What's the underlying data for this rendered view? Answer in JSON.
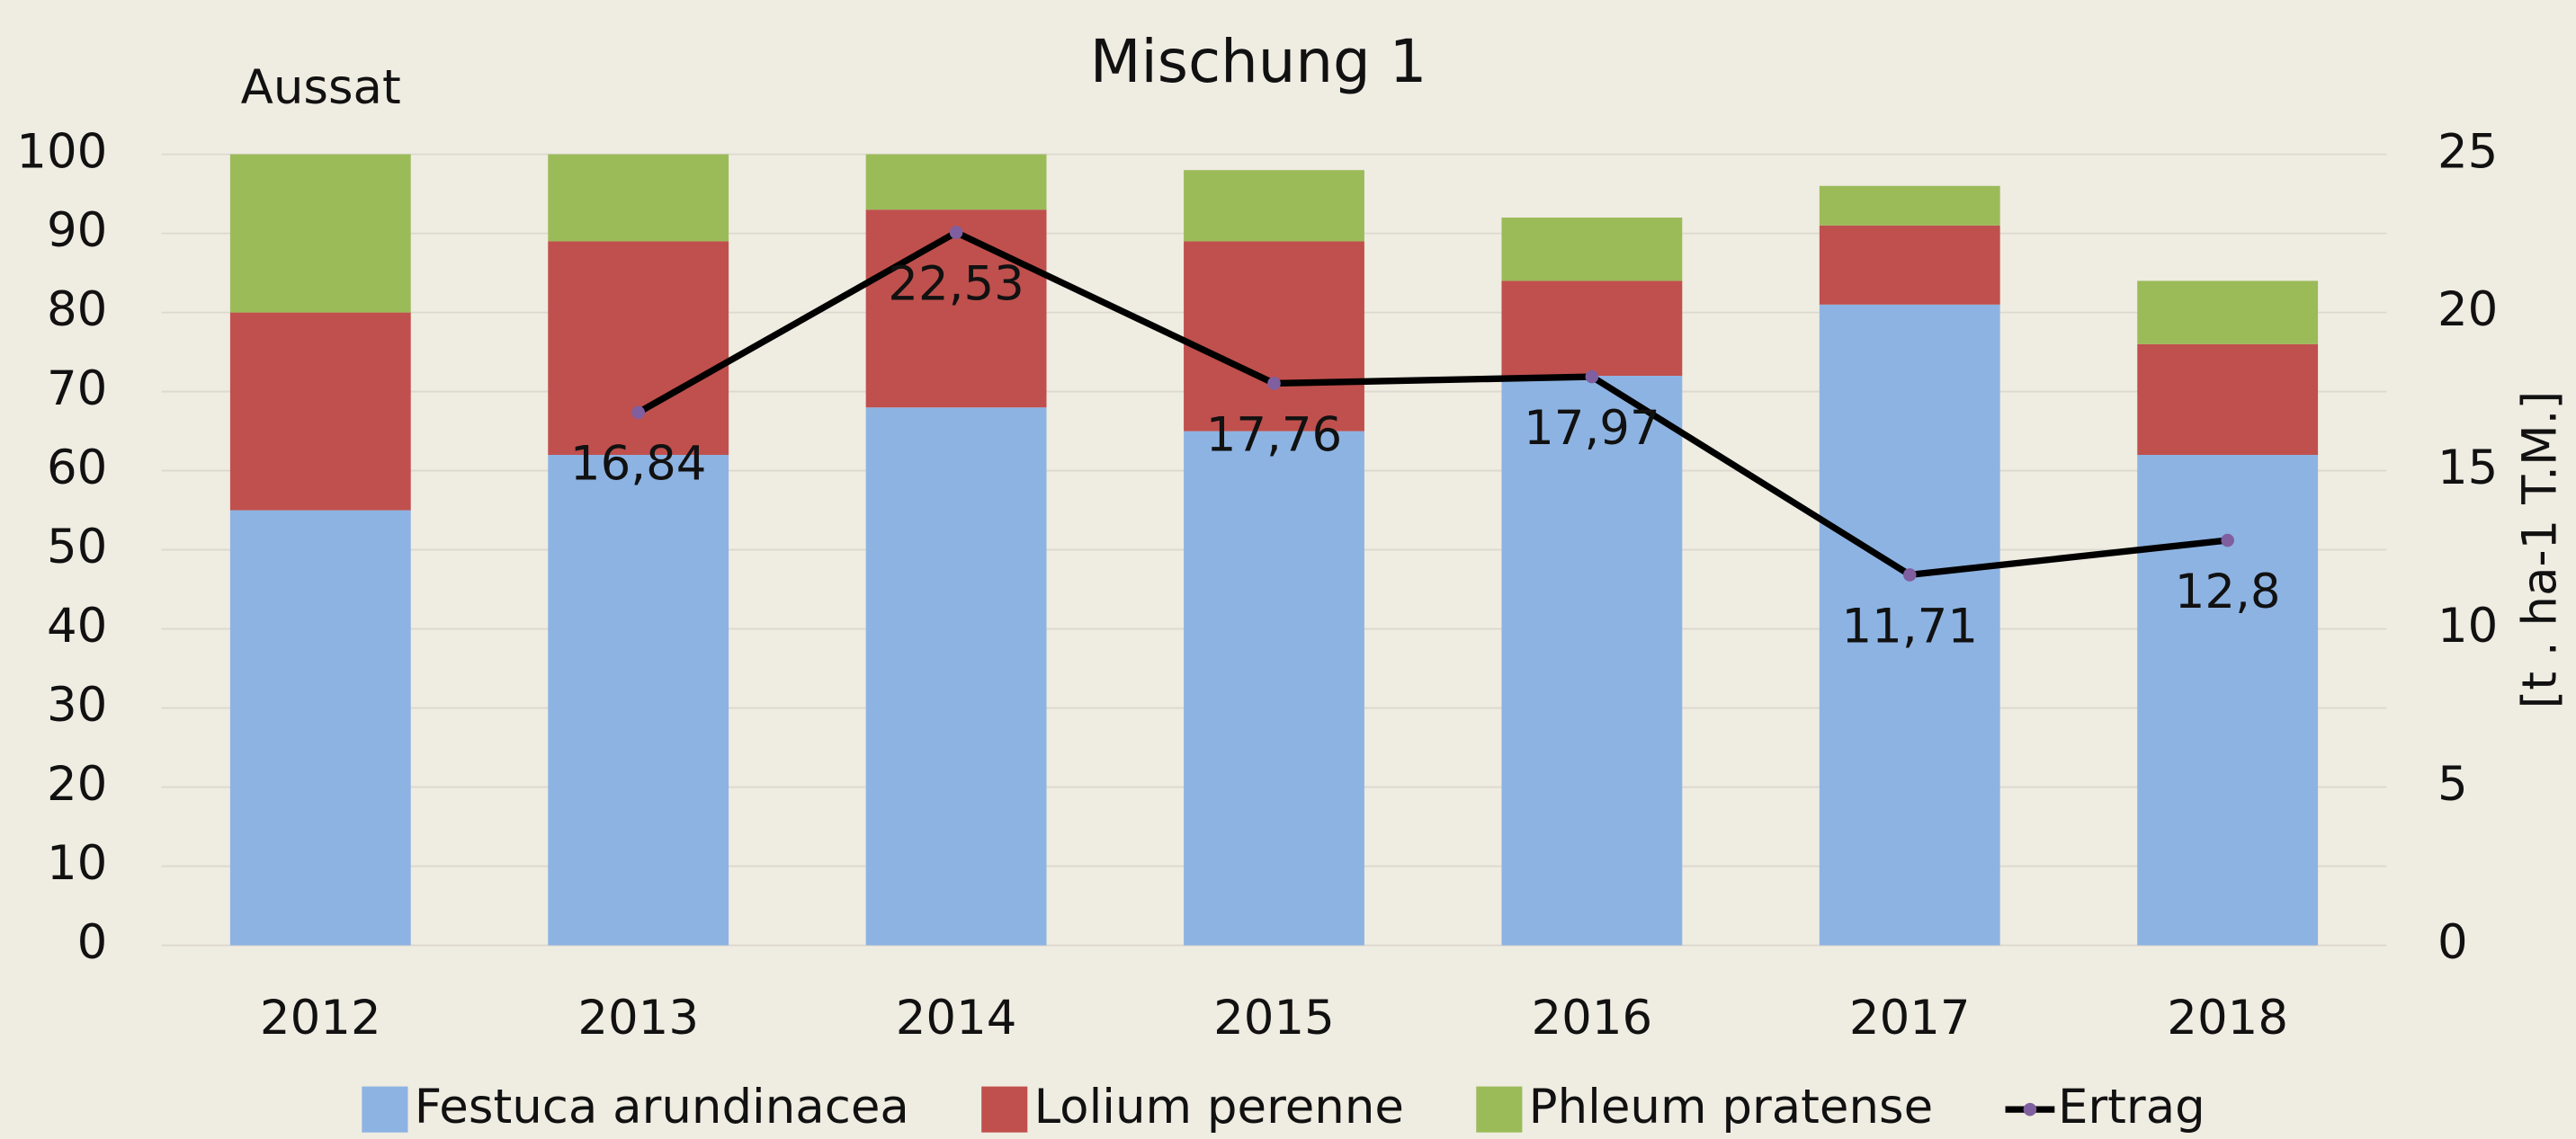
{
  "chart_data": {
    "type": "bar",
    "stacked": true,
    "title": "Mischung 1",
    "annotation": "Aussat",
    "y2_label": "[t . ha-1 T.M.]",
    "categories": [
      "2012",
      "2013",
      "2014",
      "2015",
      "2016",
      "2017",
      "2018"
    ],
    "series": [
      {
        "name": "Festuca arundinacea",
        "color": "#8db3e2",
        "values": [
          55,
          62,
          68,
          65,
          72,
          81,
          62
        ]
      },
      {
        "name": "Lolium perenne",
        "color": "#c0504d",
        "values": [
          25,
          27,
          25,
          24,
          12,
          10,
          14
        ]
      },
      {
        "name": "Phleum pratense",
        "color": "#9bbb59",
        "values": [
          20,
          11,
          7,
          9,
          8,
          5,
          8
        ]
      },
      {
        "name": "Ertrag",
        "type": "line",
        "axis": "y2",
        "color": "#000000",
        "marker_color": "#7f5f9f",
        "values": [
          null,
          16.84,
          22.53,
          17.76,
          17.97,
          11.71,
          12.8
        ],
        "value_labels": [
          null,
          "16,84",
          "22,53",
          "17,76",
          "17,97",
          "11,71",
          "12,8"
        ]
      }
    ],
    "ylim": [
      0,
      100
    ],
    "yticks": [
      0,
      10,
      20,
      30,
      40,
      50,
      60,
      70,
      80,
      90,
      100
    ],
    "y2lim": [
      0,
      25
    ],
    "y2ticks": [
      0,
      5,
      10,
      15,
      20,
      25
    ],
    "grid": true,
    "legend": "bottom"
  }
}
